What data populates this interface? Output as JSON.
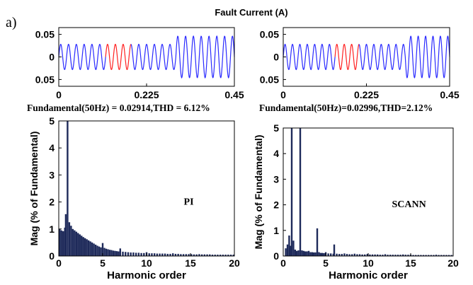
{
  "panel_label": "a)",
  "title": "Fault Current (A)",
  "chart_data": [
    {
      "type": "line",
      "name": "pi-waveform",
      "xticks": [
        "0",
        "0.225",
        "0.45"
      ],
      "yticks": [
        "0.05",
        "0",
        "0.05"
      ],
      "xlim": [
        0,
        0.45
      ],
      "ylim": [
        -0.065,
        0.065
      ],
      "segments": [
        {
          "x_start": 0.0,
          "x_end": 0.12,
          "amplitude": 0.028,
          "color": "#2a2aff"
        },
        {
          "x_start": 0.12,
          "x_end": 0.185,
          "amplitude": 0.028,
          "color": "#ff2020"
        },
        {
          "x_start": 0.185,
          "x_end": 0.3,
          "amplitude": 0.028,
          "color": "#2a2aff"
        },
        {
          "x_start": 0.3,
          "x_end": 0.45,
          "amplitude": 0.046,
          "color": "#2a2aff"
        }
      ],
      "frequency_hz": 50,
      "caption": "Fundamental(50Hz) = 0.02914,THD = 6.12%"
    },
    {
      "type": "line",
      "name": "scann-waveform",
      "xticks": [
        "0",
        "0.225",
        "0.45"
      ],
      "yticks": [
        "0.05",
        "0",
        "0.05"
      ],
      "xlim": [
        0,
        0.45
      ],
      "ylim": [
        -0.065,
        0.065
      ],
      "segments": [
        {
          "x_start": 0.0,
          "x_end": 0.14,
          "amplitude": 0.028,
          "color": "#2a2aff"
        },
        {
          "x_start": 0.14,
          "x_end": 0.205,
          "amplitude": 0.028,
          "color": "#ff2020"
        },
        {
          "x_start": 0.205,
          "x_end": 0.33,
          "amplitude": 0.028,
          "color": "#2a2aff"
        },
        {
          "x_start": 0.33,
          "x_end": 0.45,
          "amplitude": 0.046,
          "color": "#2a2aff"
        }
      ],
      "frequency_hz": 50,
      "caption": "Fundamental(50Hz)=0.02996,THD=2.12%"
    },
    {
      "type": "bar",
      "name": "pi-spectrum",
      "xlabel": "Harmonic order",
      "ylabel": "Mag (% of Fundamental)",
      "xlim": [
        0,
        20
      ],
      "ylim": [
        0,
        5
      ],
      "xticks": [
        "0",
        "5",
        "10",
        "15",
        "20"
      ],
      "yticks": [
        "0",
        "1",
        "2",
        "3",
        "4",
        "5"
      ],
      "annotation": "PI",
      "bar_color": "#1e2a5a",
      "bars": [
        {
          "x": 0.1,
          "y": 1.0
        },
        {
          "x": 0.3,
          "y": 0.95
        },
        {
          "x": 0.5,
          "y": 0.92
        },
        {
          "x": 0.7,
          "y": 1.05
        },
        {
          "x": 0.8,
          "y": 1.55
        },
        {
          "x": 1.0,
          "y": 5.0
        },
        {
          "x": 1.2,
          "y": 1.25
        },
        {
          "x": 1.4,
          "y": 1.12
        },
        {
          "x": 1.6,
          "y": 1.0
        },
        {
          "x": 1.8,
          "y": 0.95
        },
        {
          "x": 2.0,
          "y": 0.9
        },
        {
          "x": 2.2,
          "y": 0.85
        },
        {
          "x": 2.4,
          "y": 0.8
        },
        {
          "x": 2.6,
          "y": 0.75
        },
        {
          "x": 2.8,
          "y": 0.7
        },
        {
          "x": 3.0,
          "y": 0.66
        },
        {
          "x": 3.2,
          "y": 0.62
        },
        {
          "x": 3.4,
          "y": 0.58
        },
        {
          "x": 3.6,
          "y": 0.54
        },
        {
          "x": 3.8,
          "y": 0.5
        },
        {
          "x": 4.0,
          "y": 0.46
        },
        {
          "x": 4.2,
          "y": 0.42
        },
        {
          "x": 4.4,
          "y": 0.38
        },
        {
          "x": 4.6,
          "y": 0.35
        },
        {
          "x": 4.8,
          "y": 0.32
        },
        {
          "x": 5.0,
          "y": 0.48
        },
        {
          "x": 5.2,
          "y": 0.3
        },
        {
          "x": 5.4,
          "y": 0.27
        },
        {
          "x": 5.6,
          "y": 0.25
        },
        {
          "x": 5.8,
          "y": 0.23
        },
        {
          "x": 6.0,
          "y": 0.22
        },
        {
          "x": 6.2,
          "y": 0.2
        },
        {
          "x": 6.4,
          "y": 0.19
        },
        {
          "x": 6.6,
          "y": 0.18
        },
        {
          "x": 6.8,
          "y": 0.17
        },
        {
          "x": 7.0,
          "y": 0.28
        },
        {
          "x": 7.3,
          "y": 0.16
        },
        {
          "x": 7.6,
          "y": 0.15
        },
        {
          "x": 7.9,
          "y": 0.14
        },
        {
          "x": 8.2,
          "y": 0.13
        },
        {
          "x": 8.5,
          "y": 0.13
        },
        {
          "x": 8.8,
          "y": 0.12
        },
        {
          "x": 9.1,
          "y": 0.12
        },
        {
          "x": 9.4,
          "y": 0.11
        },
        {
          "x": 9.7,
          "y": 0.11
        },
        {
          "x": 10.0,
          "y": 0.14
        },
        {
          "x": 10.3,
          "y": 0.1
        },
        {
          "x": 10.6,
          "y": 0.1
        },
        {
          "x": 10.9,
          "y": 0.1
        },
        {
          "x": 11.2,
          "y": 0.09
        },
        {
          "x": 11.5,
          "y": 0.09
        },
        {
          "x": 11.8,
          "y": 0.09
        },
        {
          "x": 12.1,
          "y": 0.09
        },
        {
          "x": 12.4,
          "y": 0.08
        },
        {
          "x": 12.7,
          "y": 0.08
        },
        {
          "x": 13.0,
          "y": 0.1
        },
        {
          "x": 13.3,
          "y": 0.08
        },
        {
          "x": 13.6,
          "y": 0.08
        },
        {
          "x": 13.9,
          "y": 0.07
        },
        {
          "x": 14.2,
          "y": 0.07
        },
        {
          "x": 14.5,
          "y": 0.07
        },
        {
          "x": 14.8,
          "y": 0.07
        },
        {
          "x": 15.1,
          "y": 0.07
        },
        {
          "x": 15.4,
          "y": 0.06
        },
        {
          "x": 15.7,
          "y": 0.06
        },
        {
          "x": 16.0,
          "y": 0.07
        },
        {
          "x": 16.3,
          "y": 0.06
        },
        {
          "x": 16.6,
          "y": 0.06
        },
        {
          "x": 16.9,
          "y": 0.06
        },
        {
          "x": 17.2,
          "y": 0.06
        },
        {
          "x": 17.5,
          "y": 0.05
        },
        {
          "x": 17.8,
          "y": 0.05
        },
        {
          "x": 18.1,
          "y": 0.05
        },
        {
          "x": 18.4,
          "y": 0.05
        },
        {
          "x": 18.7,
          "y": 0.05
        },
        {
          "x": 19.0,
          "y": 0.05
        },
        {
          "x": 19.3,
          "y": 0.05
        },
        {
          "x": 19.6,
          "y": 0.05
        },
        {
          "x": 19.9,
          "y": 0.05
        }
      ]
    },
    {
      "type": "bar",
      "name": "scann-spectrum",
      "xlabel": "Harmonic order",
      "ylabel": "Mag (% of Fundamental)",
      "xlim": [
        0,
        20
      ],
      "ylim": [
        0,
        5
      ],
      "xticks": [
        "0",
        "5",
        "10",
        "15",
        "20"
      ],
      "yticks": [
        "0",
        "1",
        "2",
        "3",
        "4",
        "5"
      ],
      "annotation": "SCANN",
      "bar_color": "#1e2a5a",
      "bars": [
        {
          "x": 0.3,
          "y": 0.3
        },
        {
          "x": 0.5,
          "y": 0.45
        },
        {
          "x": 0.7,
          "y": 0.8
        },
        {
          "x": 0.85,
          "y": 0.4
        },
        {
          "x": 1.0,
          "y": 5.0
        },
        {
          "x": 1.2,
          "y": 0.6
        },
        {
          "x": 1.4,
          "y": 0.25
        },
        {
          "x": 1.6,
          "y": 0.2
        },
        {
          "x": 1.8,
          "y": 0.22
        },
        {
          "x": 2.0,
          "y": 5.0
        },
        {
          "x": 2.2,
          "y": 0.22
        },
        {
          "x": 2.4,
          "y": 0.2
        },
        {
          "x": 2.6,
          "y": 0.18
        },
        {
          "x": 2.8,
          "y": 0.18
        },
        {
          "x": 3.0,
          "y": 0.2
        },
        {
          "x": 3.2,
          "y": 0.15
        },
        {
          "x": 3.4,
          "y": 0.15
        },
        {
          "x": 3.6,
          "y": 0.14
        },
        {
          "x": 3.8,
          "y": 0.14
        },
        {
          "x": 4.0,
          "y": 1.08
        },
        {
          "x": 4.2,
          "y": 0.15
        },
        {
          "x": 4.4,
          "y": 0.12
        },
        {
          "x": 4.6,
          "y": 0.12
        },
        {
          "x": 4.8,
          "y": 0.11
        },
        {
          "x": 5.0,
          "y": 0.15
        },
        {
          "x": 5.3,
          "y": 0.1
        },
        {
          "x": 5.6,
          "y": 0.1
        },
        {
          "x": 5.9,
          "y": 0.09
        },
        {
          "x": 6.0,
          "y": 0.45
        },
        {
          "x": 6.3,
          "y": 0.09
        },
        {
          "x": 6.6,
          "y": 0.08
        },
        {
          "x": 6.9,
          "y": 0.08
        },
        {
          "x": 7.2,
          "y": 0.1
        },
        {
          "x": 7.5,
          "y": 0.08
        },
        {
          "x": 7.8,
          "y": 0.07
        },
        {
          "x": 8.1,
          "y": 0.07
        },
        {
          "x": 8.4,
          "y": 0.09
        },
        {
          "x": 8.7,
          "y": 0.07
        },
        {
          "x": 9.0,
          "y": 0.07
        },
        {
          "x": 9.3,
          "y": 0.06
        },
        {
          "x": 9.6,
          "y": 0.06
        },
        {
          "x": 9.9,
          "y": 0.08
        },
        {
          "x": 10.2,
          "y": 0.06
        },
        {
          "x": 10.5,
          "y": 0.06
        },
        {
          "x": 10.8,
          "y": 0.06
        },
        {
          "x": 11.1,
          "y": 0.06
        },
        {
          "x": 11.4,
          "y": 0.05
        },
        {
          "x": 11.7,
          "y": 0.05
        },
        {
          "x": 12.0,
          "y": 0.07
        },
        {
          "x": 12.3,
          "y": 0.05
        },
        {
          "x": 12.6,
          "y": 0.05
        },
        {
          "x": 12.9,
          "y": 0.05
        },
        {
          "x": 13.2,
          "y": 0.05
        },
        {
          "x": 13.5,
          "y": 0.05
        },
        {
          "x": 13.8,
          "y": 0.05
        },
        {
          "x": 14.1,
          "y": 0.06
        },
        {
          "x": 14.4,
          "y": 0.05
        },
        {
          "x": 14.7,
          "y": 0.05
        },
        {
          "x": 15.0,
          "y": 0.05
        },
        {
          "x": 15.3,
          "y": 0.04
        },
        {
          "x": 15.6,
          "y": 0.04
        },
        {
          "x": 15.9,
          "y": 0.04
        },
        {
          "x": 16.2,
          "y": 0.04
        },
        {
          "x": 16.5,
          "y": 0.04
        },
        {
          "x": 16.8,
          "y": 0.04
        },
        {
          "x": 17.1,
          "y": 0.04
        },
        {
          "x": 17.4,
          "y": 0.04
        },
        {
          "x": 17.7,
          "y": 0.04
        },
        {
          "x": 18.0,
          "y": 0.05
        },
        {
          "x": 18.3,
          "y": 0.04
        },
        {
          "x": 18.6,
          "y": 0.04
        },
        {
          "x": 18.9,
          "y": 0.04
        },
        {
          "x": 19.2,
          "y": 0.04
        },
        {
          "x": 19.5,
          "y": 0.04
        },
        {
          "x": 19.8,
          "y": 0.04
        }
      ]
    }
  ]
}
